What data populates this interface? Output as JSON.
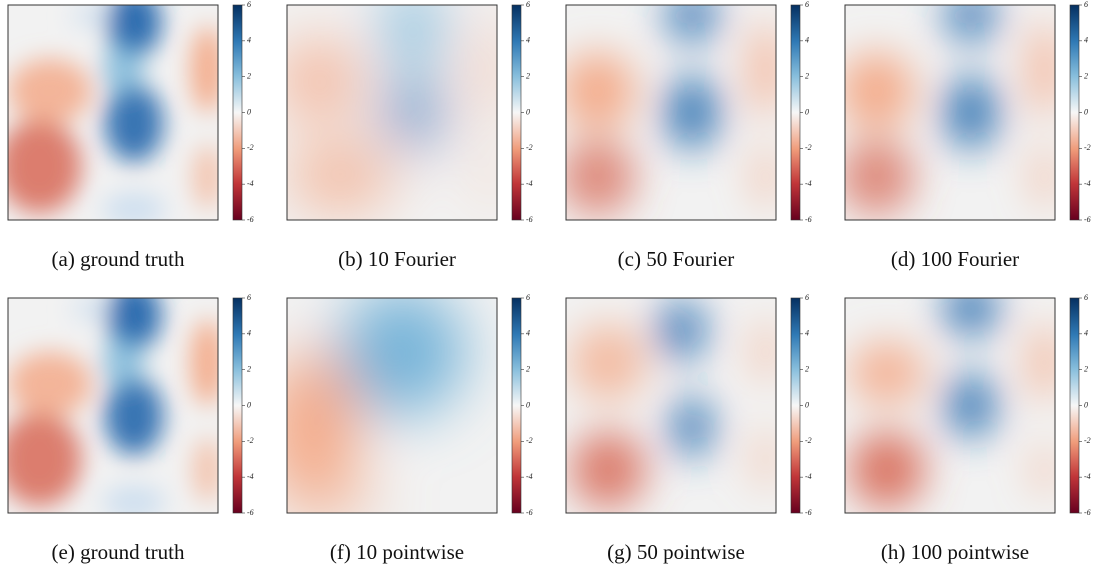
{
  "colorbar": {
    "lim": [
      -6,
      6
    ],
    "ticks": [
      -6,
      -4,
      -2,
      0,
      2,
      4,
      6
    ]
  },
  "panels": [
    {
      "caption": "(a) ground truth"
    },
    {
      "caption": "(b) 10 Fourier"
    },
    {
      "caption": "(c) 50 Fourier"
    },
    {
      "caption": "(d) 100 Fourier"
    },
    {
      "caption": "(e) ground truth"
    },
    {
      "caption": "(f) 10 pointwise"
    },
    {
      "caption": "(g) 50 pointwise"
    },
    {
      "caption": "(h) 100 pointwise"
    }
  ]
}
